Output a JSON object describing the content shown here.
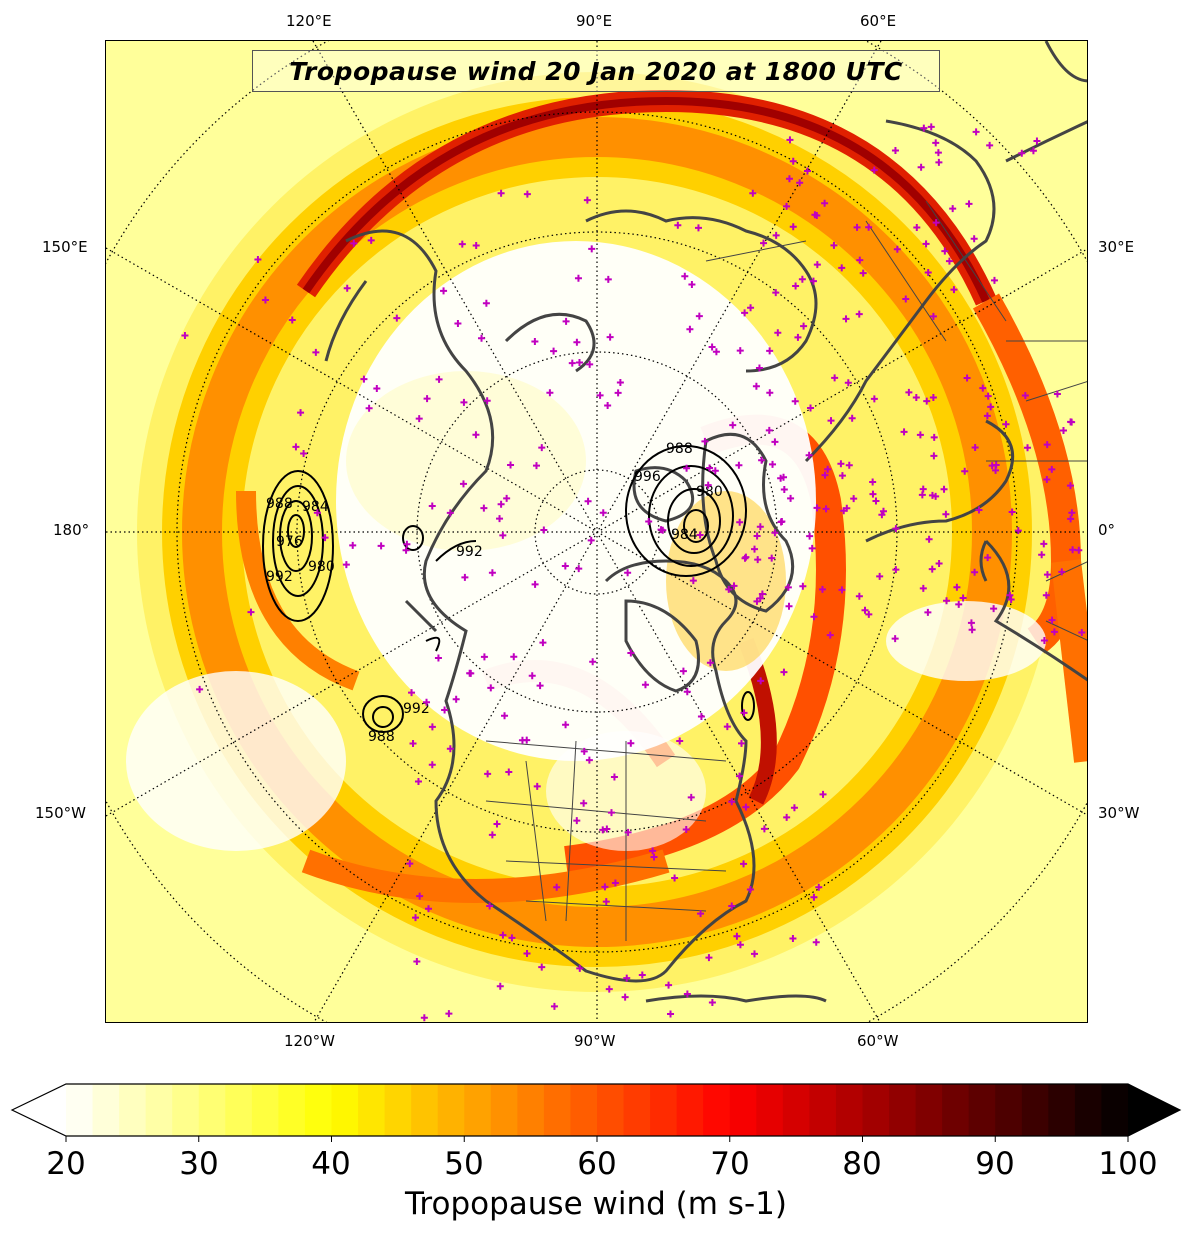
{
  "map": {
    "title": "Tropopause wind 20 Jan 2020 at 1800 UTC",
    "projection": "north polar stereographic",
    "longitude_labels": {
      "top": [
        "120°E",
        "90°E",
        "60°E"
      ],
      "bottom": [
        "120°W",
        "90°W",
        "60°W"
      ],
      "left": [
        "150°E",
        "180°",
        "150°W"
      ],
      "right": [
        "30°E",
        "0°",
        "30°W"
      ]
    },
    "contour_labels": [
      "988",
      "992",
      "984",
      "976",
      "980",
      "996"
    ],
    "colors": {
      "station_marker": "#c000c0",
      "coastline": "#444444",
      "contour": "#000000",
      "graticule": "#000000"
    }
  },
  "colorbar": {
    "label": "Tropopause wind (m s-1)",
    "ticks": [
      "20",
      "30",
      "40",
      "50",
      "60",
      "70",
      "80",
      "90",
      "100"
    ],
    "min": 20,
    "max": 100,
    "extend": "both",
    "colormap": "hot_r"
  }
}
